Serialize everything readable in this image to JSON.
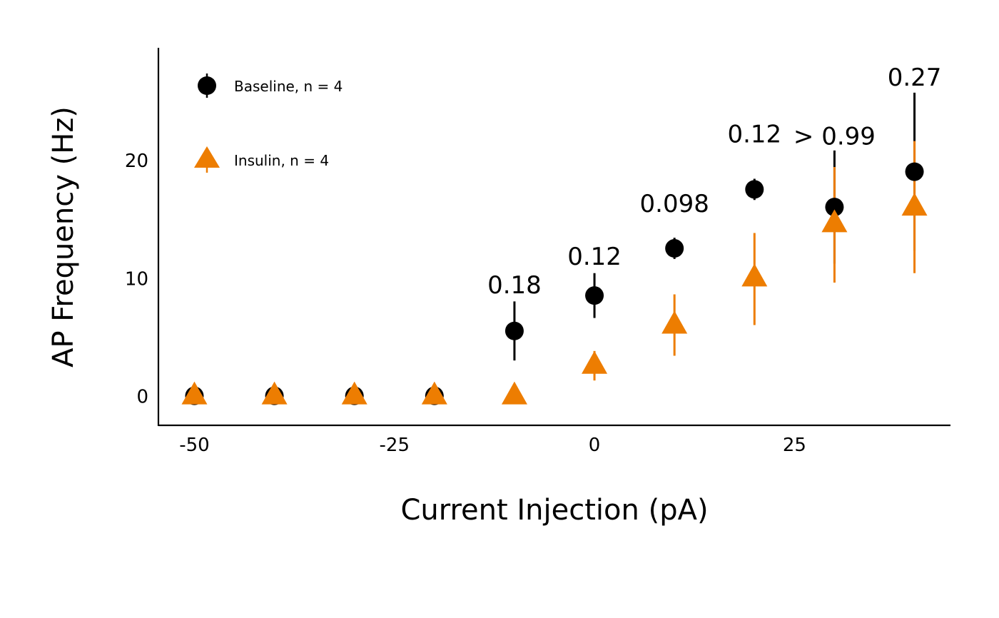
{
  "chart_data": {
    "type": "scatter",
    "xlabel": "Current Injection (pA)",
    "ylabel": "AP Frequency (Hz)",
    "xlim": [
      -54.5,
      44.5
    ],
    "ylim": [
      -2.5,
      29.5
    ],
    "xticks": [
      -50,
      -25,
      0,
      25
    ],
    "xtick_labels": [
      "-50",
      "-25",
      "0",
      "25"
    ],
    "yticks": [
      0,
      10,
      20
    ],
    "ytick_labels": [
      "0",
      "10",
      "20"
    ],
    "grid": false,
    "legend_position": "top-left",
    "series": [
      {
        "name": "Baseline, n = 4",
        "marker": "circle",
        "color": "#000000",
        "x": [
          -50,
          -40,
          -30,
          -20,
          -10,
          0,
          10,
          20,
          30,
          40
        ],
        "y": [
          0,
          0,
          0,
          0,
          5.5,
          8.5,
          12.5,
          17.5,
          16.0,
          19.0
        ],
        "err_low": [
          0,
          0,
          0,
          0,
          3.0,
          6.6,
          11.6,
          16.6,
          11.2,
          12.3
        ],
        "err_high": [
          0,
          0,
          0,
          0,
          8.0,
          10.4,
          13.4,
          18.4,
          20.8,
          25.7
        ]
      },
      {
        "name": "Insulin, n = 4",
        "marker": "triangle",
        "color": "#ED7D01",
        "x": [
          -50,
          -40,
          -30,
          -20,
          -10,
          0,
          10,
          20,
          30,
          40
        ],
        "y": [
          0,
          0,
          0,
          0,
          0,
          2.6,
          6.0,
          10.0,
          14.6,
          16.0
        ],
        "err_low": [
          0,
          0,
          0,
          0,
          0,
          1.3,
          3.4,
          6.0,
          9.6,
          10.4
        ],
        "err_high": [
          0,
          0,
          0,
          0,
          0,
          3.8,
          8.6,
          13.8,
          19.4,
          21.6
        ]
      }
    ],
    "annotations": [
      {
        "x": -10,
        "y": 8.7,
        "text": "0.18"
      },
      {
        "x": 0,
        "y": 11.1,
        "text": "0.12"
      },
      {
        "x": 10,
        "y": 15.6,
        "text": "0.098"
      },
      {
        "x": 20,
        "y": 21.5,
        "text": "0.12"
      },
      {
        "x": 30,
        "y": 21.3,
        "text": "> 0.99"
      },
      {
        "x": 40,
        "y": 26.3,
        "text": "0.27"
      }
    ]
  }
}
